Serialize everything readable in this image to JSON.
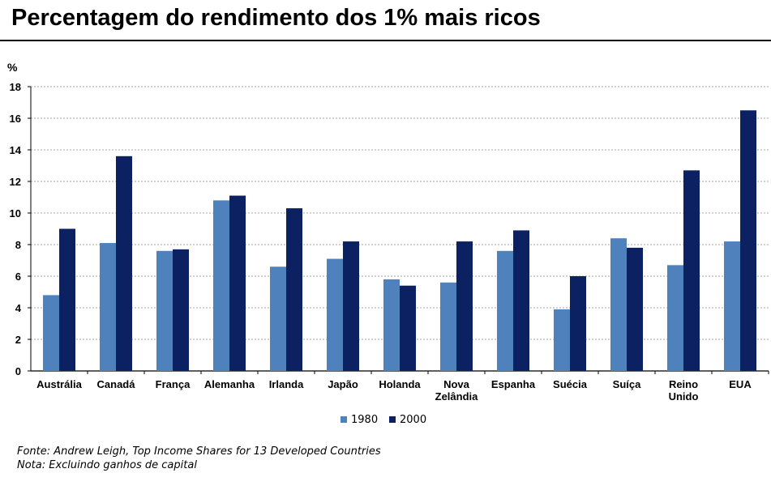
{
  "title": "Percentagem do rendimento dos 1% mais ricos",
  "notes": {
    "source": "Fonte:  Andrew Leigh, Top Income Shares for 13 Developed Countries",
    "note": "Nota: Excluindo ganhos de capital"
  },
  "chart_data": {
    "type": "bar",
    "title": "Percentagem do rendimento dos 1% mais ricos",
    "xlabel": "",
    "ylabel": "%",
    "ylim": [
      0,
      18
    ],
    "yticks": [
      0,
      2,
      4,
      6,
      8,
      10,
      12,
      14,
      16,
      18
    ],
    "grid": true,
    "legend_position": "bottom",
    "categories": [
      "Austrália",
      "Canadá",
      "França",
      "Alemanha",
      "Irlanda",
      "Japão",
      "Holanda",
      "Nova\nZelândia",
      "Espanha",
      "Suécia",
      "Suíça",
      "Reino\nUnido",
      "EUA"
    ],
    "series": [
      {
        "name": "1980",
        "color": "#4f81bd",
        "values": [
          4.8,
          8.1,
          7.6,
          10.8,
          6.6,
          7.1,
          5.8,
          5.6,
          7.6,
          3.9,
          8.4,
          6.7,
          8.2
        ]
      },
      {
        "name": "2000",
        "color": "#0c2161",
        "values": [
          9.0,
          13.6,
          7.7,
          11.1,
          10.3,
          8.2,
          5.4,
          8.2,
          8.9,
          6.0,
          7.8,
          12.7,
          16.5
        ]
      }
    ]
  }
}
